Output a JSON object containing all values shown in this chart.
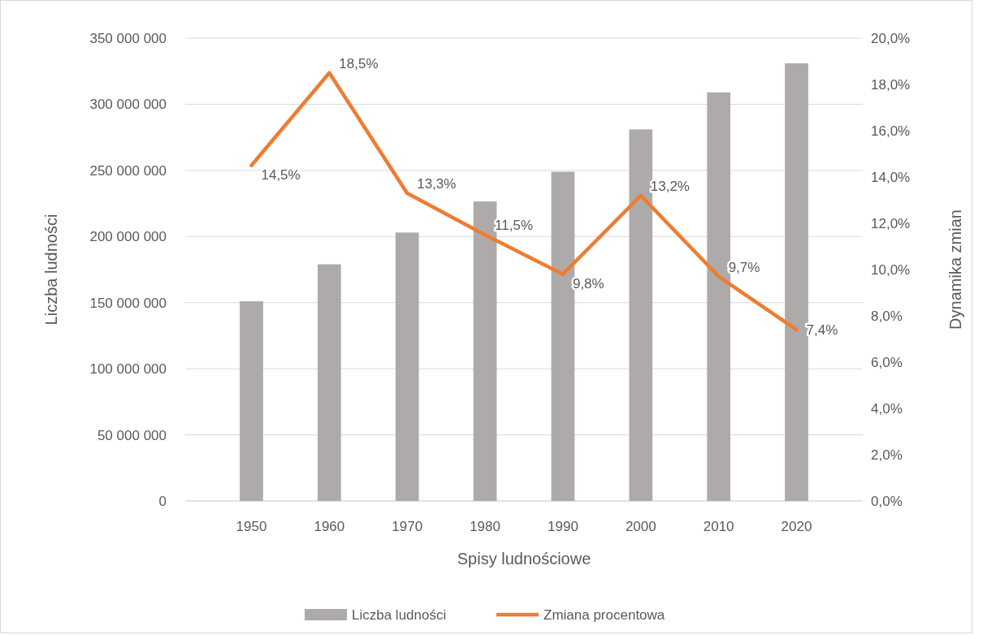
{
  "chart_data": {
    "type": "bar",
    "xlabel": "Spisy ludnościowe",
    "ylabel": "Liczba ludności",
    "y2label": "Dynamika zmian",
    "categories": [
      "1950",
      "1960",
      "1970",
      "1980",
      "1990",
      "2000",
      "2010",
      "2020"
    ],
    "series": [
      {
        "name": "Liczba ludności",
        "color": "#aeaaaa",
        "values": [
          151000000,
          179000000,
          203000000,
          226500000,
          249000000,
          281000000,
          309000000,
          331000000
        ]
      },
      {
        "name": "Zmiana procentowa",
        "type": "line",
        "axis": "y2",
        "color": "#ed7d31",
        "values": [
          14.5,
          18.5,
          13.3,
          11.5,
          9.8,
          13.2,
          9.7,
          7.4
        ],
        "value_labels": [
          "14,5%",
          "18,5%",
          "13,3%",
          "11,5%",
          "9,8%",
          "13,2%",
          "9,7%",
          "7,4%"
        ]
      }
    ],
    "ylim": [
      0,
      350000000
    ],
    "yticks": [
      {
        "value": 0,
        "label": "0"
      },
      {
        "value": 50000000,
        "label": "50 000 000"
      },
      {
        "value": 100000000,
        "label": "100 000 000"
      },
      {
        "value": 150000000,
        "label": "150 000 000"
      },
      {
        "value": 200000000,
        "label": "200 000 000"
      },
      {
        "value": 250000000,
        "label": "250 000 000"
      },
      {
        "value": 300000000,
        "label": "300 000 000"
      },
      {
        "value": 350000000,
        "label": "350 000 000"
      }
    ],
    "y2lim": [
      0,
      20
    ],
    "y2ticks": [
      {
        "value": 0,
        "label": "0,0%"
      },
      {
        "value": 2,
        "label": "2,0%"
      },
      {
        "value": 4,
        "label": "4,0%"
      },
      {
        "value": 6,
        "label": "6,0%"
      },
      {
        "value": 8,
        "label": "8,0%"
      },
      {
        "value": 10,
        "label": "10,0%"
      },
      {
        "value": 12,
        "label": "12,0%"
      },
      {
        "value": 14,
        "label": "14,0%"
      },
      {
        "value": 16,
        "label": "16,0%"
      },
      {
        "value": 18,
        "label": "18,0%"
      },
      {
        "value": 20,
        "label": "20,0%"
      }
    ],
    "grid": "y",
    "legend": "bottom"
  }
}
